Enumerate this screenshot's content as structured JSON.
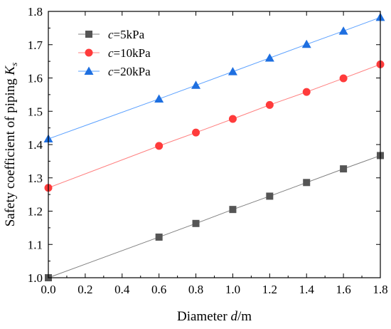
{
  "chart_data": {
    "type": "line",
    "title": "",
    "xlabel": {
      "prefix": "Diameter ",
      "var": "d",
      "suffix": "/m"
    },
    "ylabel": {
      "prefix": "Safety coefficient of piping  ",
      "var": "K",
      "sub": "s"
    },
    "xlim": [
      0.0,
      1.8
    ],
    "ylim": [
      1.0,
      1.8
    ],
    "xticks": [
      "0.0",
      "0.2",
      "0.4",
      "0.6",
      "0.8",
      "1.0",
      "1.2",
      "1.4",
      "1.6",
      "1.8"
    ],
    "yticks": [
      "1.0",
      "1.1",
      "1.2",
      "1.3",
      "1.4",
      "1.5",
      "1.6",
      "1.7",
      "1.8"
    ],
    "grid": false,
    "legend_position": "top-left",
    "x": [
      0.0,
      0.6,
      0.8,
      1.0,
      1.2,
      1.4,
      1.6,
      1.8
    ],
    "series": [
      {
        "name": "c=5kPa",
        "name_var": "c",
        "name_rest": "=5kPa",
        "marker": "square",
        "color": "#555555",
        "line_color": "#808080",
        "values": [
          1.0,
          1.122,
          1.163,
          1.205,
          1.245,
          1.286,
          1.327,
          1.367
        ]
      },
      {
        "name": "c=10kPa",
        "name_var": "c",
        "name_rest": "=10kPa",
        "marker": "circle",
        "color": "#ff3b3b",
        "line_color": "#ff8080",
        "values": [
          1.27,
          1.396,
          1.436,
          1.477,
          1.519,
          1.558,
          1.599,
          1.641
        ]
      },
      {
        "name": "c=20kPa",
        "name_var": "c",
        "name_rest": "=20kPa",
        "marker": "triangle",
        "color": "#1e6fe0",
        "line_color": "#5aa0ff",
        "values": [
          1.417,
          1.537,
          1.578,
          1.619,
          1.66,
          1.701,
          1.741,
          1.782
        ]
      }
    ]
  }
}
